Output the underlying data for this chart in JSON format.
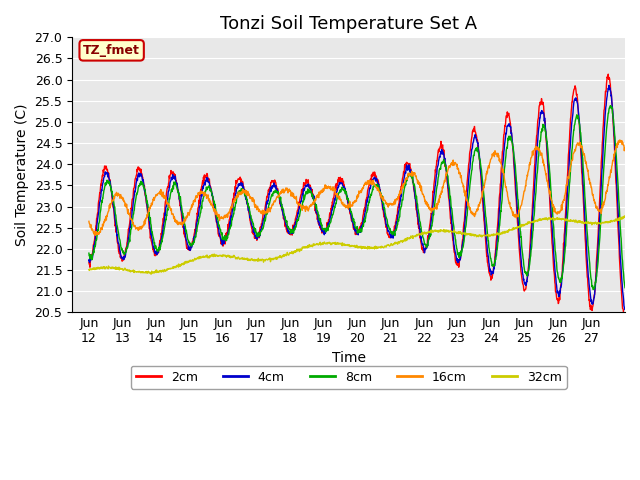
{
  "title": "Tonzi Soil Temperature Set A",
  "xlabel": "Time",
  "ylabel": "Soil Temperature (C)",
  "ylim": [
    20.5,
    27.0
  ],
  "yticks": [
    20.5,
    21.0,
    21.5,
    22.0,
    22.5,
    23.0,
    23.5,
    24.0,
    24.5,
    25.0,
    25.5,
    26.0,
    26.5,
    27.0
  ],
  "xtick_labels": [
    "Jun\n12",
    "Jun\n13",
    "Jun\n14",
    "Jun\n15",
    "Jun\n16",
    "Jun\n17",
    "Jun\n18",
    "Jun\n19",
    "Jun\n20",
    "Jun\n21",
    "Jun\n22",
    "Jun\n23",
    "Jun\n24",
    "Jun\n25",
    "Jun\n26",
    "Jun\n27"
  ],
  "xtick_labels_first": "Jun",
  "xtick_positions": [
    1,
    2,
    3,
    4,
    5,
    6,
    7,
    8,
    9,
    10,
    11,
    12,
    13,
    14,
    15,
    16
  ],
  "line_colors": {
    "2cm": "#FF0000",
    "4cm": "#0000CC",
    "8cm": "#00AA00",
    "16cm": "#FF8800",
    "32cm": "#CCCC00"
  },
  "legend_label": "TZ_fmet",
  "legend_bg": "#FFFFCC",
  "legend_border": "#CC0000",
  "bg_color": "#E8E8E8",
  "title_fontsize": 13,
  "axis_fontsize": 10,
  "tick_fontsize": 9
}
